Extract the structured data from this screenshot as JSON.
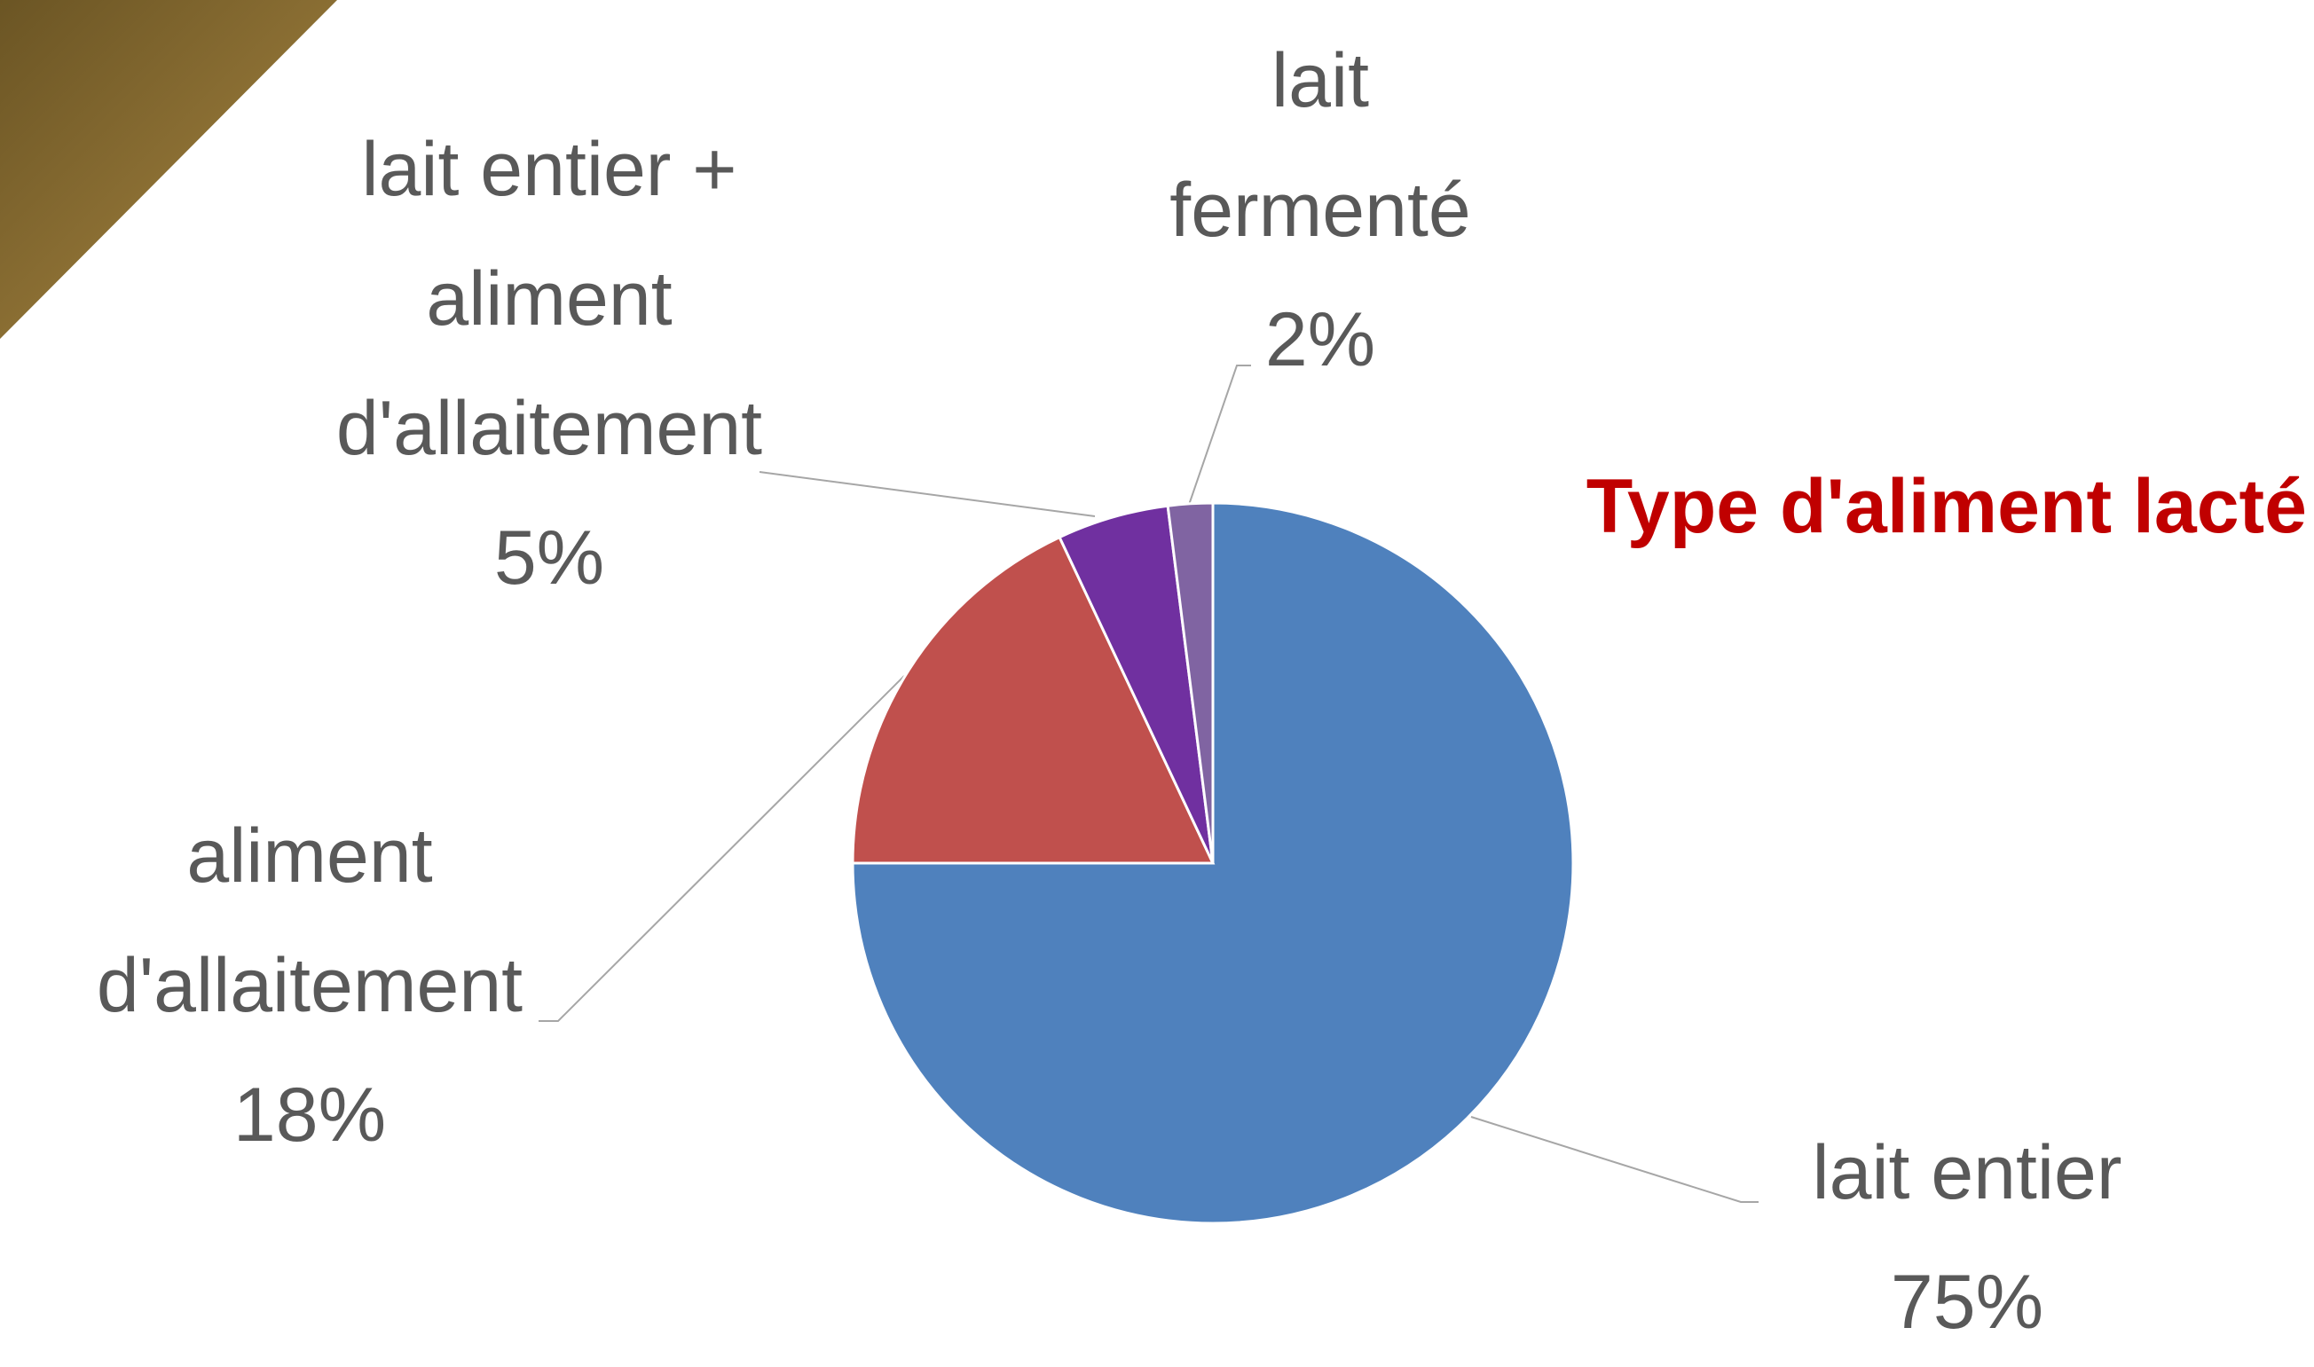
{
  "chart_data": {
    "type": "pie",
    "title": "Type d'aliment lacté",
    "categories": [
      "lait entier",
      "aliment d'allaitement",
      "lait entier + aliment d'allaitement",
      "lait fermenté"
    ],
    "values": [
      75,
      18,
      5,
      2
    ],
    "value_labels": [
      "75%",
      "18%",
      "5%",
      "2%"
    ],
    "colors": [
      "#4f81bd",
      "#c0504d",
      "#7030a0",
      "#8064a2"
    ]
  }
}
